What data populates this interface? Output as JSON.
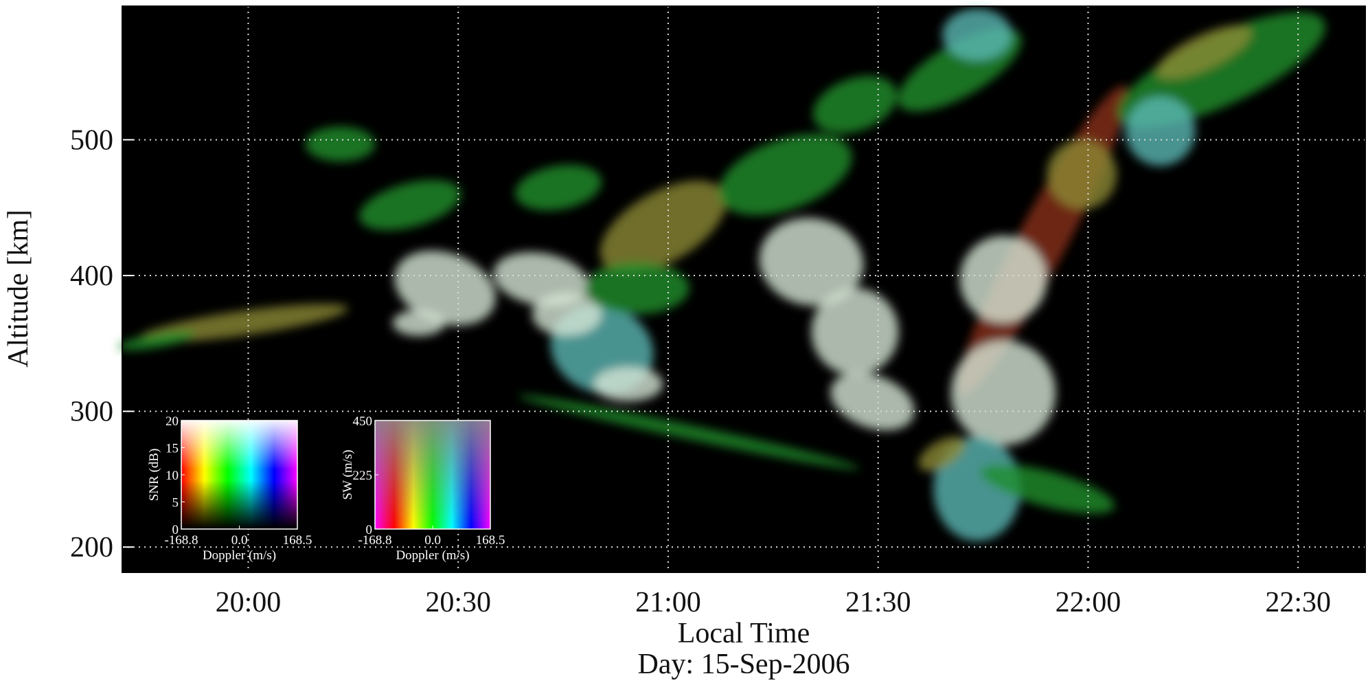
{
  "chart_data": [
    {
      "type": "heatmap",
      "ylabel": "Altitude [km]",
      "xlabel": "Local Time",
      "subtitle": "Day: 15-Sep-2006",
      "xlim": [
        19.7,
        22.66
      ],
      "xticks": [
        {
          "value": 20,
          "label": "20:00"
        },
        {
          "value": 20.5,
          "label": "20:30"
        },
        {
          "value": 21,
          "label": "21:00"
        },
        {
          "value": 21.5,
          "label": "21:30"
        },
        {
          "value": 22,
          "label": "22:00"
        },
        {
          "value": 22.5,
          "label": "22:30"
        }
      ],
      "ylim": [
        181.4,
        598.4
      ],
      "yticks": [
        200,
        300,
        400,
        500
      ],
      "grid": true
    },
    {
      "type": "colorkey",
      "ylabel": "SNR (dB)",
      "xlabel": "Doppler (m/s)",
      "xlim": [
        -168.8,
        168.5
      ],
      "xticks": [
        {
          "value": -168.8,
          "label": "-168.8"
        },
        {
          "value": 0,
          "label": "0.0"
        },
        {
          "value": 168.5,
          "label": "168.5"
        }
      ],
      "ylim": [
        0,
        20
      ],
      "yticks": [
        0,
        5,
        10,
        15,
        20
      ],
      "colors": [
        "#ff0000",
        "#ffff00",
        "#00ff00",
        "#00ffff",
        "#0000ff",
        "#ff00ff"
      ]
    },
    {
      "type": "colorkey",
      "ylabel": "SW (m/s)",
      "xlabel": "Doppler (m/s)",
      "xlim": [
        -168.8,
        168.5
      ],
      "xticks": [
        {
          "value": -168.8,
          "label": "-168.8"
        },
        {
          "value": 0,
          "label": "0.0"
        },
        {
          "value": 168.5,
          "label": "168.5"
        }
      ],
      "ylim": [
        0,
        450
      ],
      "yticks": [
        0,
        225,
        450
      ],
      "colors": [
        "#ff00ff",
        "#ff0000",
        "#ffff00",
        "#00ff00",
        "#00ffff",
        "#0000ff",
        "#ff00ff"
      ]
    }
  ]
}
